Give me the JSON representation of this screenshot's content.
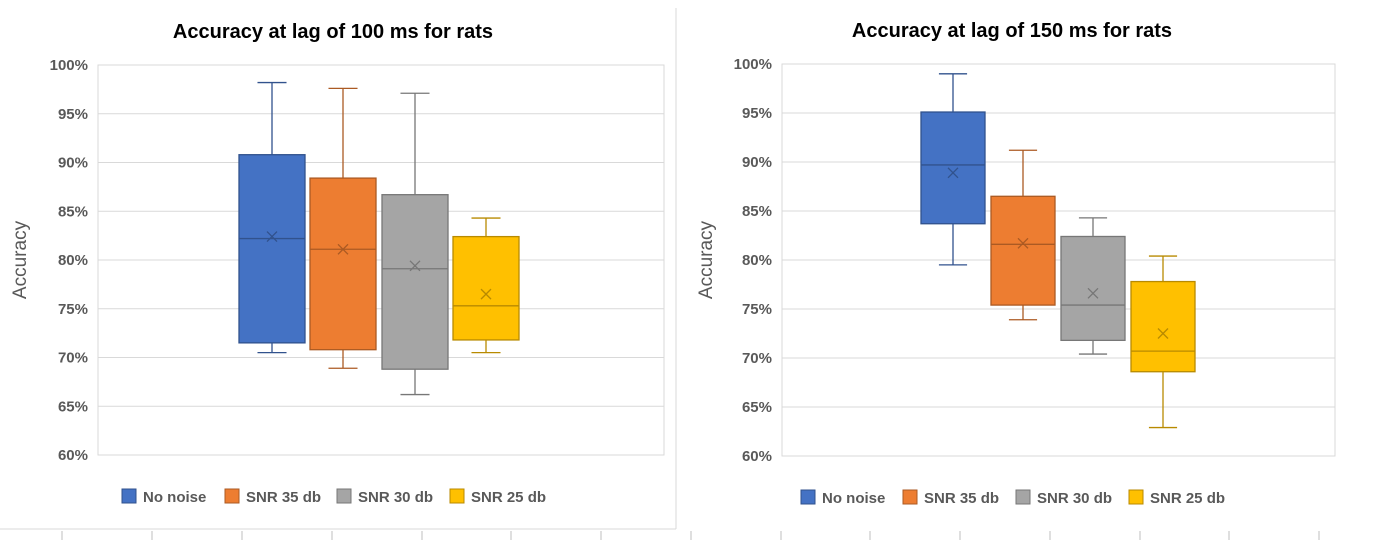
{
  "chart_data": [
    {
      "type": "box",
      "title": "Accuracy at lag of 100 ms for rats",
      "ylabel": "Accuracy",
      "ylim": [
        0.6,
        1.0
      ],
      "yticks": [
        "60%",
        "65%",
        "70%",
        "75%",
        "80%",
        "85%",
        "90%",
        "95%",
        "100%"
      ],
      "grid": true,
      "legend_position": "bottom",
      "series": [
        {
          "name": "No noise",
          "color": "#4472C4",
          "min": 0.705,
          "q1": 0.715,
          "median": 0.822,
          "q3": 0.908,
          "max": 0.982,
          "mean": 0.824
        },
        {
          "name": "SNR 35 db",
          "color": "#ED7D31",
          "min": 0.689,
          "q1": 0.708,
          "median": 0.811,
          "q3": 0.884,
          "max": 0.976,
          "mean": 0.811
        },
        {
          "name": "SNR 30 db",
          "color": "#A5A5A5",
          "min": 0.662,
          "q1": 0.688,
          "median": 0.791,
          "q3": 0.867,
          "max": 0.971,
          "mean": 0.794
        },
        {
          "name": "SNR 25 db",
          "color": "#FFC000",
          "min": 0.705,
          "q1": 0.718,
          "median": 0.753,
          "q3": 0.824,
          "max": 0.843,
          "mean": 0.765
        }
      ]
    },
    {
      "type": "box",
      "title": "Accuracy at lag of 150 ms for rats",
      "ylabel": "Accuracy",
      "ylim": [
        0.6,
        1.0
      ],
      "yticks": [
        "60%",
        "65%",
        "70%",
        "75%",
        "80%",
        "85%",
        "90%",
        "95%",
        "100%"
      ],
      "grid": true,
      "legend_position": "bottom",
      "series": [
        {
          "name": "No noise",
          "color": "#4472C4",
          "min": 0.795,
          "q1": 0.837,
          "median": 0.897,
          "q3": 0.951,
          "max": 0.99,
          "mean": 0.889
        },
        {
          "name": "SNR 35 db",
          "color": "#ED7D31",
          "min": 0.739,
          "q1": 0.754,
          "median": 0.816,
          "q3": 0.865,
          "max": 0.912,
          "mean": 0.817
        },
        {
          "name": "SNR 30 db",
          "color": "#A5A5A5",
          "min": 0.704,
          "q1": 0.718,
          "median": 0.754,
          "q3": 0.824,
          "max": 0.843,
          "mean": 0.766
        },
        {
          "name": "SNR 25 db",
          "color": "#FFC000",
          "min": 0.629,
          "q1": 0.686,
          "median": 0.707,
          "q3": 0.778,
          "max": 0.804,
          "mean": 0.725
        }
      ]
    }
  ]
}
